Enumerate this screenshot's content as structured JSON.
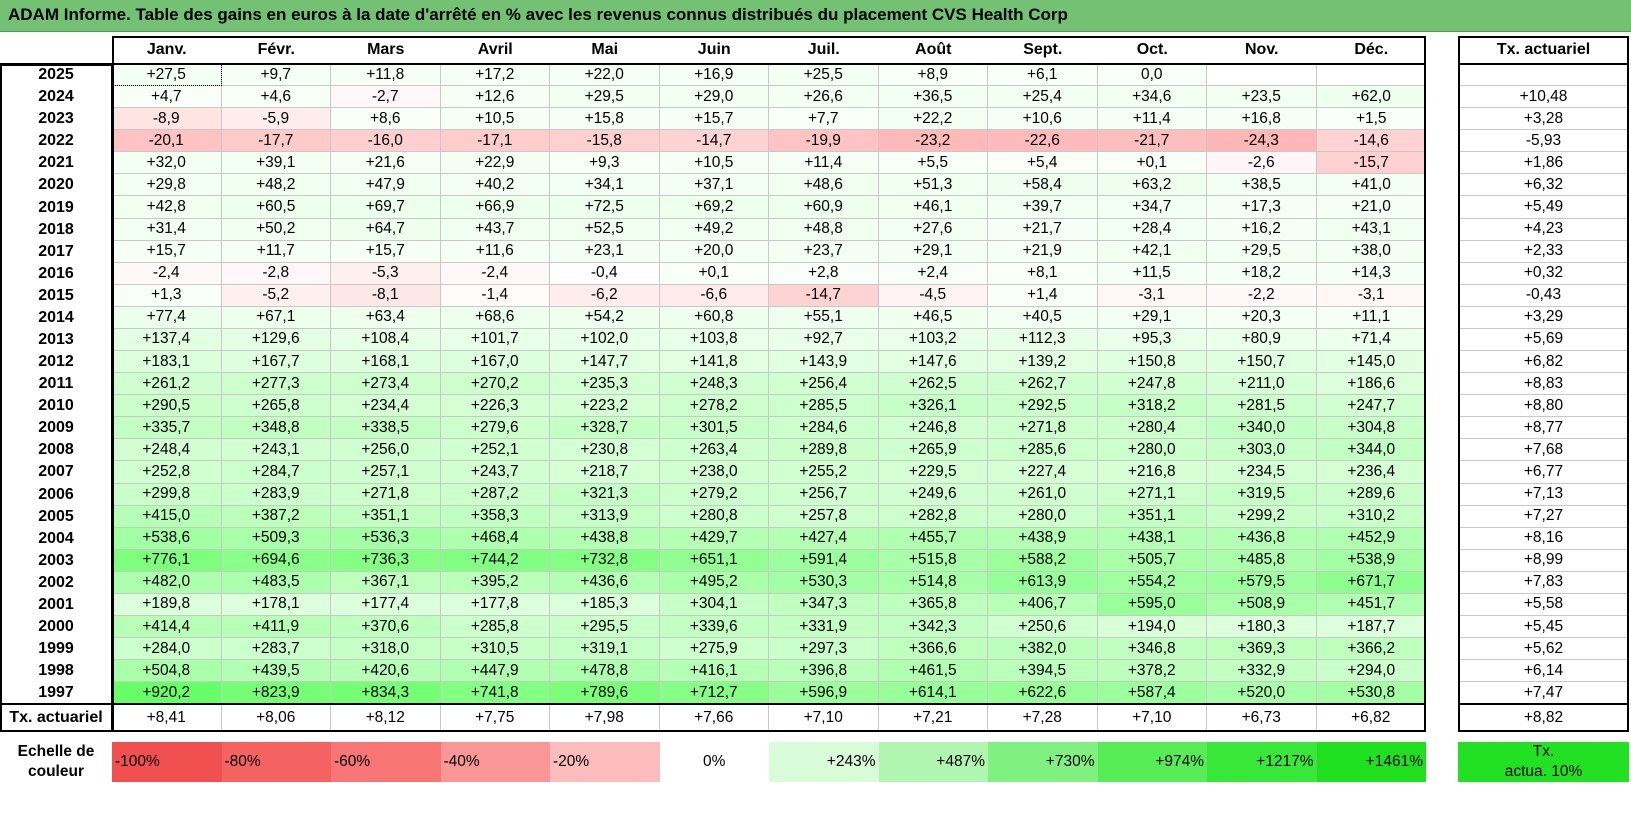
{
  "title": "ADAM Informe. Table des gains en euros à la date d'arrêté en % avec les revenus connus distribués du placement CVS Health Corp",
  "months": [
    "Janv.",
    "Févr.",
    "Mars",
    "Avril",
    "Mai",
    "Juin",
    "Juil.",
    "Août",
    "Sept.",
    "Oct.",
    "Nov.",
    "Déc."
  ],
  "rate_header": "Tx. actuariel",
  "rows": [
    {
      "year": "2025",
      "values": [
        "+27,5",
        "+9,7",
        "+11,8",
        "+17,2",
        "+22,0",
        "+16,9",
        "+25,5",
        "+8,9",
        "+6,1",
        "0,0",
        "",
        ""
      ],
      "rate": ""
    },
    {
      "year": "2024",
      "values": [
        "+4,7",
        "+4,6",
        "-2,7",
        "+12,6",
        "+29,5",
        "+29,0",
        "+26,6",
        "+36,5",
        "+25,4",
        "+34,6",
        "+23,5",
        "+62,0"
      ],
      "rate": "+10,48"
    },
    {
      "year": "2023",
      "values": [
        "-8,9",
        "-5,9",
        "+8,6",
        "+10,5",
        "+15,8",
        "+15,7",
        "+7,7",
        "+22,2",
        "+10,6",
        "+11,4",
        "+16,8",
        "+1,5"
      ],
      "rate": "+3,28"
    },
    {
      "year": "2022",
      "values": [
        "-20,1",
        "-17,7",
        "-16,0",
        "-17,1",
        "-15,8",
        "-14,7",
        "-19,9",
        "-23,2",
        "-22,6",
        "-21,7",
        "-24,3",
        "-14,6"
      ],
      "rate": "-5,93"
    },
    {
      "year": "2021",
      "values": [
        "+32,0",
        "+39,1",
        "+21,6",
        "+22,9",
        "+9,3",
        "+10,5",
        "+11,4",
        "+5,5",
        "+5,4",
        "+0,1",
        "-2,6",
        "-15,7"
      ],
      "rate": "+1,86"
    },
    {
      "year": "2020",
      "values": [
        "+29,8",
        "+48,2",
        "+47,9",
        "+40,2",
        "+34,1",
        "+37,1",
        "+48,6",
        "+51,3",
        "+58,4",
        "+63,2",
        "+38,5",
        "+41,0"
      ],
      "rate": "+6,32"
    },
    {
      "year": "2019",
      "values": [
        "+42,8",
        "+60,5",
        "+69,7",
        "+66,9",
        "+72,5",
        "+69,2",
        "+60,9",
        "+46,1",
        "+39,7",
        "+34,7",
        "+17,3",
        "+21,0"
      ],
      "rate": "+5,49"
    },
    {
      "year": "2018",
      "values": [
        "+31,4",
        "+50,2",
        "+64,7",
        "+43,7",
        "+52,5",
        "+49,2",
        "+48,8",
        "+27,6",
        "+21,7",
        "+28,4",
        "+16,2",
        "+43,1"
      ],
      "rate": "+4,23"
    },
    {
      "year": "2017",
      "values": [
        "+15,7",
        "+11,7",
        "+15,7",
        "+11,6",
        "+23,1",
        "+20,0",
        "+23,7",
        "+29,1",
        "+21,9",
        "+42,1",
        "+29,5",
        "+38,0"
      ],
      "rate": "+2,33"
    },
    {
      "year": "2016",
      "values": [
        "-2,4",
        "-2,8",
        "-5,3",
        "-2,4",
        "-0,4",
        "+0,1",
        "+2,8",
        "+2,4",
        "+8,1",
        "+11,5",
        "+18,2",
        "+14,3"
      ],
      "rate": "+0,32"
    },
    {
      "year": "2015",
      "values": [
        "+1,3",
        "-5,2",
        "-8,1",
        "-1,4",
        "-6,2",
        "-6,6",
        "-14,7",
        "-4,5",
        "+1,4",
        "-3,1",
        "-2,2",
        "-3,1"
      ],
      "rate": "-0,43"
    },
    {
      "year": "2014",
      "values": [
        "+77,4",
        "+67,1",
        "+63,4",
        "+68,6",
        "+54,2",
        "+60,8",
        "+55,1",
        "+46,5",
        "+40,5",
        "+29,1",
        "+20,3",
        "+11,1"
      ],
      "rate": "+3,29"
    },
    {
      "year": "2013",
      "values": [
        "+137,4",
        "+129,6",
        "+108,4",
        "+101,7",
        "+102,0",
        "+103,8",
        "+92,7",
        "+103,2",
        "+112,3",
        "+95,3",
        "+80,9",
        "+71,4"
      ],
      "rate": "+5,69"
    },
    {
      "year": "2012",
      "values": [
        "+183,1",
        "+167,7",
        "+168,1",
        "+167,0",
        "+147,7",
        "+141,8",
        "+143,9",
        "+147,6",
        "+139,2",
        "+150,8",
        "+150,7",
        "+145,0"
      ],
      "rate": "+6,82"
    },
    {
      "year": "2011",
      "values": [
        "+261,2",
        "+277,3",
        "+273,4",
        "+270,2",
        "+235,3",
        "+248,3",
        "+256,4",
        "+262,5",
        "+262,7",
        "+247,8",
        "+211,0",
        "+186,6"
      ],
      "rate": "+8,83"
    },
    {
      "year": "2010",
      "values": [
        "+290,5",
        "+265,8",
        "+234,4",
        "+226,3",
        "+223,2",
        "+278,2",
        "+285,5",
        "+326,1",
        "+292,5",
        "+318,2",
        "+281,5",
        "+247,7"
      ],
      "rate": "+8,80"
    },
    {
      "year": "2009",
      "values": [
        "+335,7",
        "+348,8",
        "+338,5",
        "+279,6",
        "+328,7",
        "+301,5",
        "+284,6",
        "+246,8",
        "+271,8",
        "+280,4",
        "+340,0",
        "+304,8"
      ],
      "rate": "+8,77"
    },
    {
      "year": "2008",
      "values": [
        "+248,4",
        "+243,1",
        "+256,0",
        "+252,1",
        "+230,8",
        "+263,4",
        "+289,8",
        "+265,9",
        "+285,6",
        "+280,0",
        "+303,0",
        "+344,0"
      ],
      "rate": "+7,68"
    },
    {
      "year": "2007",
      "values": [
        "+252,8",
        "+284,7",
        "+257,1",
        "+243,7",
        "+218,7",
        "+238,0",
        "+255,2",
        "+229,5",
        "+227,4",
        "+216,8",
        "+234,5",
        "+236,4"
      ],
      "rate": "+6,77"
    },
    {
      "year": "2006",
      "values": [
        "+299,8",
        "+283,9",
        "+271,8",
        "+287,2",
        "+321,3",
        "+279,2",
        "+256,7",
        "+249,6",
        "+261,0",
        "+271,1",
        "+319,5",
        "+289,6"
      ],
      "rate": "+7,13"
    },
    {
      "year": "2005",
      "values": [
        "+415,0",
        "+387,2",
        "+351,1",
        "+358,3",
        "+313,9",
        "+280,8",
        "+257,8",
        "+282,8",
        "+280,0",
        "+351,1",
        "+299,2",
        "+310,2"
      ],
      "rate": "+7,27"
    },
    {
      "year": "2004",
      "values": [
        "+538,6",
        "+509,3",
        "+536,3",
        "+468,4",
        "+438,8",
        "+429,7",
        "+427,4",
        "+455,7",
        "+438,9",
        "+438,1",
        "+436,8",
        "+452,9"
      ],
      "rate": "+8,16"
    },
    {
      "year": "2003",
      "values": [
        "+776,1",
        "+694,6",
        "+736,3",
        "+744,2",
        "+732,8",
        "+651,1",
        "+591,4",
        "+515,8",
        "+588,2",
        "+505,7",
        "+485,8",
        "+538,9"
      ],
      "rate": "+8,99"
    },
    {
      "year": "2002",
      "values": [
        "+482,0",
        "+483,5",
        "+367,1",
        "+395,2",
        "+436,6",
        "+495,2",
        "+530,3",
        "+514,8",
        "+613,9",
        "+554,2",
        "+579,5",
        "+671,7"
      ],
      "rate": "+7,83"
    },
    {
      "year": "2001",
      "values": [
        "+189,8",
        "+178,1",
        "+177,4",
        "+177,8",
        "+185,3",
        "+304,1",
        "+347,3",
        "+365,8",
        "+406,7",
        "+595,0",
        "+508,9",
        "+451,7"
      ],
      "rate": "+5,58"
    },
    {
      "year": "2000",
      "values": [
        "+414,4",
        "+411,9",
        "+370,6",
        "+285,8",
        "+295,5",
        "+339,6",
        "+331,9",
        "+342,3",
        "+250,6",
        "+194,0",
        "+180,3",
        "+187,7"
      ],
      "rate": "+5,45"
    },
    {
      "year": "1999",
      "values": [
        "+284,0",
        "+283,7",
        "+318,0",
        "+310,5",
        "+319,1",
        "+275,9",
        "+297,3",
        "+366,6",
        "+382,0",
        "+346,8",
        "+369,3",
        "+366,2"
      ],
      "rate": "+5,62"
    },
    {
      "year": "1998",
      "values": [
        "+504,8",
        "+439,5",
        "+420,6",
        "+447,9",
        "+478,8",
        "+416,1",
        "+396,8",
        "+461,5",
        "+394,5",
        "+378,2",
        "+332,9",
        "+294,0"
      ],
      "rate": "+6,14"
    },
    {
      "year": "1997",
      "values": [
        "+920,2",
        "+823,9",
        "+834,3",
        "+741,8",
        "+789,6",
        "+712,7",
        "+596,9",
        "+614,1",
        "+622,6",
        "+587,4",
        "+520,0",
        "+530,8"
      ],
      "rate": "+7,47"
    }
  ],
  "footer": {
    "label": "Tx. actuariel",
    "values": [
      "+8,41",
      "+8,06",
      "+8,12",
      "+7,75",
      "+7,98",
      "+7,66",
      "+7,10",
      "+7,21",
      "+7,28",
      "+7,10",
      "+6,73",
      "+6,82"
    ],
    "total": "+8,82"
  },
  "scale": {
    "label_line1": "Echelle de",
    "label_line2": "couleur",
    "items": [
      {
        "text": "-100%",
        "color": "#f05050",
        "align": "left"
      },
      {
        "text": "-80%",
        "color": "#f46262",
        "align": "left"
      },
      {
        "text": "-60%",
        "color": "#f77575",
        "align": "left"
      },
      {
        "text": "-40%",
        "color": "#fa9696",
        "align": "left"
      },
      {
        "text": "-20%",
        "color": "#fcbcbc",
        "align": "left"
      },
      {
        "text": "0%",
        "color": "#ffffff",
        "align": "center"
      },
      {
        "text": "+243%",
        "color": "#d8fbd8",
        "align": "right"
      },
      {
        "text": "+487%",
        "color": "#b0f6b0",
        "align": "right"
      },
      {
        "text": "+730%",
        "color": "#80f080",
        "align": "right"
      },
      {
        "text": "+974%",
        "color": "#55ec55",
        "align": "right"
      },
      {
        "text": "+1217%",
        "color": "#38e838",
        "align": "right"
      },
      {
        "text": "+1461%",
        "color": "#1ee01e",
        "align": "right"
      }
    ],
    "rate_line1": "Tx.",
    "rate_line2": "actua. 10%",
    "rate_color": "#22e022"
  }
}
